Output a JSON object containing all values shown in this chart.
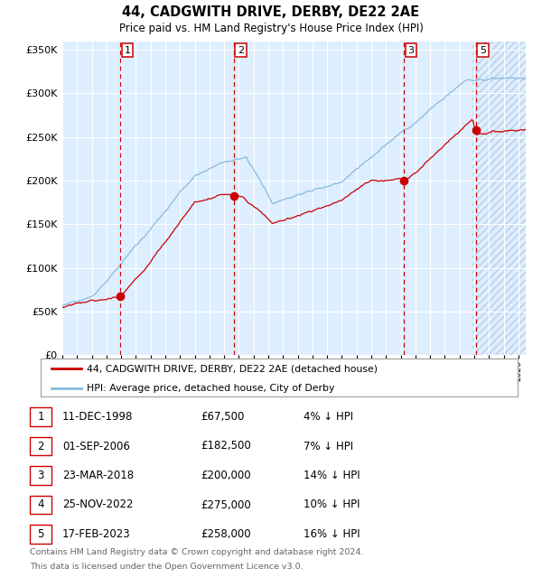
{
  "title": "44, CADGWITH DRIVE, DERBY, DE22 2AE",
  "subtitle": "Price paid vs. HM Land Registry's House Price Index (HPI)",
  "legend_red": "44, CADGWITH DRIVE, DERBY, DE22 2AE (detached house)",
  "legend_blue": "HPI: Average price, detached house, City of Derby",
  "footer1": "Contains HM Land Registry data © Crown copyright and database right 2024.",
  "footer2": "This data is licensed under the Open Government Licence v3.0.",
  "xmin": 1995.0,
  "xmax": 2026.5,
  "ymin": 0,
  "ymax": 360000,
  "yticks": [
    0,
    50000,
    100000,
    150000,
    200000,
    250000,
    300000,
    350000
  ],
  "transactions": [
    {
      "id": 1,
      "date": "11-DEC-1998",
      "year": 1998.95,
      "price": 67500,
      "price_str": "£67,500",
      "pct": "4% ↓ HPI"
    },
    {
      "id": 2,
      "date": "01-SEP-2006",
      "year": 2006.67,
      "price": 182500,
      "price_str": "£182,500",
      "pct": "7% ↓ HPI"
    },
    {
      "id": 3,
      "date": "23-MAR-2018",
      "year": 2018.23,
      "price": 200000,
      "price_str": "£200,000",
      "pct": "14% ↓ HPI"
    },
    {
      "id": 4,
      "date": "25-NOV-2022",
      "year": 2022.9,
      "price": 275000,
      "price_str": "£275,000",
      "pct": "10% ↓ HPI"
    },
    {
      "id": 5,
      "date": "17-FEB-2023",
      "year": 2023.13,
      "price": 258000,
      "price_str": "£258,000",
      "pct": "16% ↓ HPI"
    }
  ],
  "shown_on_chart": [
    1,
    2,
    3,
    5
  ],
  "hatch_start": 2022.9,
  "red_color": "#cc0000",
  "blue_color": "#88bbdd",
  "bg_color": "#ddeeff",
  "grid_color": "#ffffff",
  "dashed_color": "#cc0000",
  "legend_border": "#aaaaaa",
  "table_row_colors": [
    "#ffffff",
    "#ffffff",
    "#ffffff",
    "#ffffff",
    "#ffffff"
  ]
}
